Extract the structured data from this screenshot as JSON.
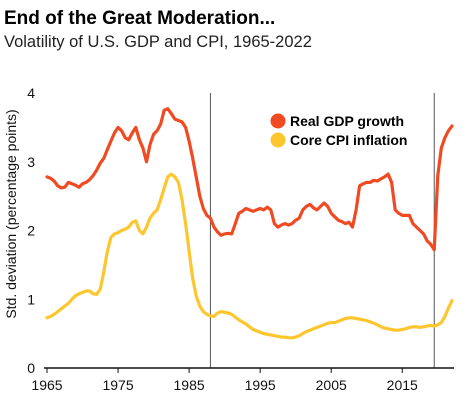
{
  "chart_data": {
    "type": "line",
    "title": "End of the Great Moderation...",
    "subtitle": "Volatility of U.S. GDP and CPI, 1965-2022",
    "xlabel": "",
    "ylabel": "Std. deviation (percentage points)",
    "xlim": [
      1965,
      2022
    ],
    "ylim": [
      0,
      4
    ],
    "xticks": [
      "1965",
      "1975",
      "1985",
      "1995",
      "2005",
      "2015"
    ],
    "xtick_values": [
      1965,
      1975,
      1985,
      1995,
      2005,
      2015
    ],
    "yticks": [
      "0",
      "1",
      "2",
      "3",
      "4"
    ],
    "ytick_values": [
      0,
      1,
      2,
      3,
      4
    ],
    "grid": false,
    "legend_position": "top-right",
    "vertical_markers": [
      1988,
      2019.5
    ],
    "colors": {
      "gdp": "#f04a23",
      "cpi": "#fec62e",
      "marker": "#555555",
      "axis": "#111111"
    },
    "series": [
      {
        "name": "Real GDP growth",
        "color": "#f04a23",
        "points": [
          [
            1965,
            2.78
          ],
          [
            1965.5,
            2.76
          ],
          [
            1966,
            2.72
          ],
          [
            1966.5,
            2.65
          ],
          [
            1967,
            2.62
          ],
          [
            1967.5,
            2.63
          ],
          [
            1968,
            2.7
          ],
          [
            1968.5,
            2.68
          ],
          [
            1969,
            2.66
          ],
          [
            1969.5,
            2.63
          ],
          [
            1970,
            2.68
          ],
          [
            1970.5,
            2.7
          ],
          [
            1971,
            2.74
          ],
          [
            1971.5,
            2.8
          ],
          [
            1972,
            2.88
          ],
          [
            1972.5,
            2.98
          ],
          [
            1973,
            3.05
          ],
          [
            1973.5,
            3.18
          ],
          [
            1974,
            3.3
          ],
          [
            1974.5,
            3.42
          ],
          [
            1975,
            3.5
          ],
          [
            1975.5,
            3.45
          ],
          [
            1976,
            3.35
          ],
          [
            1976.5,
            3.32
          ],
          [
            1977,
            3.42
          ],
          [
            1977.5,
            3.5
          ],
          [
            1978,
            3.32
          ],
          [
            1978.5,
            3.2
          ],
          [
            1979,
            3.0
          ],
          [
            1979.5,
            3.25
          ],
          [
            1980,
            3.4
          ],
          [
            1980.5,
            3.45
          ],
          [
            1981,
            3.55
          ],
          [
            1981.5,
            3.75
          ],
          [
            1982,
            3.77
          ],
          [
            1982.5,
            3.7
          ],
          [
            1983,
            3.62
          ],
          [
            1983.5,
            3.6
          ],
          [
            1984,
            3.58
          ],
          [
            1984.5,
            3.5
          ],
          [
            1985,
            3.3
          ],
          [
            1985.5,
            3.05
          ],
          [
            1986,
            2.78
          ],
          [
            1986.5,
            2.5
          ],
          [
            1987,
            2.32
          ],
          [
            1987.5,
            2.22
          ],
          [
            1988,
            2.18
          ],
          [
            1988.5,
            2.05
          ],
          [
            1989,
            1.98
          ],
          [
            1989.5,
            1.93
          ],
          [
            1990,
            1.95
          ],
          [
            1990.5,
            1.96
          ],
          [
            1991,
            1.95
          ],
          [
            1991.5,
            2.1
          ],
          [
            1992,
            2.25
          ],
          [
            1992.5,
            2.28
          ],
          [
            1993,
            2.32
          ],
          [
            1993.5,
            2.3
          ],
          [
            1994,
            2.28
          ],
          [
            1994.5,
            2.3
          ],
          [
            1995,
            2.32
          ],
          [
            1995.5,
            2.3
          ],
          [
            1996,
            2.34
          ],
          [
            1996.5,
            2.3
          ],
          [
            1997,
            2.1
          ],
          [
            1997.5,
            2.05
          ],
          [
            1998,
            2.08
          ],
          [
            1998.5,
            2.1
          ],
          [
            1999,
            2.08
          ],
          [
            1999.5,
            2.1
          ],
          [
            2000,
            2.15
          ],
          [
            2000.5,
            2.18
          ],
          [
            2001,
            2.3
          ],
          [
            2001.5,
            2.35
          ],
          [
            2002,
            2.38
          ],
          [
            2002.5,
            2.33
          ],
          [
            2003,
            2.3
          ],
          [
            2003.5,
            2.35
          ],
          [
            2004,
            2.4
          ],
          [
            2004.5,
            2.35
          ],
          [
            2005,
            2.25
          ],
          [
            2005.5,
            2.2
          ],
          [
            2006,
            2.15
          ],
          [
            2006.5,
            2.13
          ],
          [
            2007,
            2.1
          ],
          [
            2007.5,
            2.12
          ],
          [
            2008,
            2.05
          ],
          [
            2008.5,
            2.3
          ],
          [
            2009,
            2.65
          ],
          [
            2009.5,
            2.68
          ],
          [
            2010,
            2.7
          ],
          [
            2010.5,
            2.7
          ],
          [
            2011,
            2.73
          ],
          [
            2011.5,
            2.72
          ],
          [
            2012,
            2.75
          ],
          [
            2012.5,
            2.78
          ],
          [
            2013,
            2.82
          ],
          [
            2013.5,
            2.7
          ],
          [
            2014,
            2.3
          ],
          [
            2014.5,
            2.25
          ],
          [
            2015,
            2.22
          ],
          [
            2015.5,
            2.22
          ],
          [
            2016,
            2.22
          ],
          [
            2016.5,
            2.1
          ],
          [
            2017,
            2.05
          ],
          [
            2017.5,
            2.0
          ],
          [
            2018,
            1.95
          ],
          [
            2018.5,
            1.85
          ],
          [
            2019,
            1.8
          ],
          [
            2019.5,
            1.72
          ],
          [
            2020,
            2.8
          ],
          [
            2020.5,
            3.2
          ],
          [
            2021,
            3.35
          ],
          [
            2021.5,
            3.45
          ],
          [
            2022,
            3.52
          ]
        ]
      },
      {
        "name": "Core CPI inflation",
        "color": "#fec62e",
        "points": [
          [
            1965,
            0.73
          ],
          [
            1965.5,
            0.75
          ],
          [
            1966,
            0.78
          ],
          [
            1966.5,
            0.82
          ],
          [
            1967,
            0.86
          ],
          [
            1967.5,
            0.9
          ],
          [
            1968,
            0.94
          ],
          [
            1968.5,
            1.0
          ],
          [
            1969,
            1.05
          ],
          [
            1969.5,
            1.08
          ],
          [
            1970,
            1.1
          ],
          [
            1970.5,
            1.12
          ],
          [
            1971,
            1.12
          ],
          [
            1971.5,
            1.08
          ],
          [
            1972,
            1.07
          ],
          [
            1972.5,
            1.15
          ],
          [
            1973,
            1.4
          ],
          [
            1973.5,
            1.7
          ],
          [
            1974,
            1.9
          ],
          [
            1974.5,
            1.95
          ],
          [
            1975,
            1.97
          ],
          [
            1975.5,
            2.0
          ],
          [
            1976,
            2.02
          ],
          [
            1976.5,
            2.05
          ],
          [
            1977,
            2.12
          ],
          [
            1977.5,
            2.14
          ],
          [
            1978,
            2.0
          ],
          [
            1978.5,
            1.95
          ],
          [
            1979,
            2.05
          ],
          [
            1979.5,
            2.18
          ],
          [
            1980,
            2.25
          ],
          [
            1980.5,
            2.3
          ],
          [
            1981,
            2.45
          ],
          [
            1981.5,
            2.62
          ],
          [
            1982,
            2.78
          ],
          [
            1982.5,
            2.82
          ],
          [
            1983,
            2.78
          ],
          [
            1983.5,
            2.7
          ],
          [
            1984,
            2.45
          ],
          [
            1984.5,
            2.1
          ],
          [
            1985,
            1.7
          ],
          [
            1985.5,
            1.3
          ],
          [
            1986,
            1.05
          ],
          [
            1986.5,
            0.9
          ],
          [
            1987,
            0.82
          ],
          [
            1987.5,
            0.78
          ],
          [
            1988,
            0.76
          ],
          [
            1988.5,
            0.75
          ],
          [
            1989,
            0.8
          ],
          [
            1989.5,
            0.82
          ],
          [
            1990,
            0.81
          ],
          [
            1990.5,
            0.8
          ],
          [
            1991,
            0.78
          ],
          [
            1991.5,
            0.74
          ],
          [
            1992,
            0.7
          ],
          [
            1992.5,
            0.67
          ],
          [
            1993,
            0.64
          ],
          [
            1993.5,
            0.6
          ],
          [
            1994,
            0.56
          ],
          [
            1994.5,
            0.54
          ],
          [
            1995,
            0.52
          ],
          [
            1995.5,
            0.5
          ],
          [
            1996,
            0.49
          ],
          [
            1996.5,
            0.48
          ],
          [
            1997,
            0.47
          ],
          [
            1997.5,
            0.46
          ],
          [
            1998,
            0.45
          ],
          [
            1998.5,
            0.45
          ],
          [
            1999,
            0.44
          ],
          [
            1999.5,
            0.44
          ],
          [
            2000,
            0.45
          ],
          [
            2000.5,
            0.47
          ],
          [
            2001,
            0.5
          ],
          [
            2001.5,
            0.53
          ],
          [
            2002,
            0.55
          ],
          [
            2002.5,
            0.57
          ],
          [
            2003,
            0.59
          ],
          [
            2003.5,
            0.61
          ],
          [
            2004,
            0.63
          ],
          [
            2004.5,
            0.65
          ],
          [
            2005,
            0.66
          ],
          [
            2005.5,
            0.66
          ],
          [
            2006,
            0.68
          ],
          [
            2006.5,
            0.7
          ],
          [
            2007,
            0.72
          ],
          [
            2007.5,
            0.73
          ],
          [
            2008,
            0.73
          ],
          [
            2008.5,
            0.72
          ],
          [
            2009,
            0.71
          ],
          [
            2009.5,
            0.7
          ],
          [
            2010,
            0.69
          ],
          [
            2010.5,
            0.67
          ],
          [
            2011,
            0.65
          ],
          [
            2011.5,
            0.63
          ],
          [
            2012,
            0.6
          ],
          [
            2012.5,
            0.58
          ],
          [
            2013,
            0.57
          ],
          [
            2013.5,
            0.56
          ],
          [
            2014,
            0.55
          ],
          [
            2014.5,
            0.55
          ],
          [
            2015,
            0.56
          ],
          [
            2015.5,
            0.57
          ],
          [
            2016,
            0.59
          ],
          [
            2016.5,
            0.6
          ],
          [
            2017,
            0.6
          ],
          [
            2017.5,
            0.59
          ],
          [
            2018,
            0.6
          ],
          [
            2018.5,
            0.61
          ],
          [
            2019,
            0.62
          ],
          [
            2019.5,
            0.61
          ],
          [
            2020,
            0.63
          ],
          [
            2020.5,
            0.66
          ],
          [
            2021,
            0.75
          ],
          [
            2021.5,
            0.87
          ],
          [
            2022,
            0.98
          ]
        ]
      }
    ]
  }
}
